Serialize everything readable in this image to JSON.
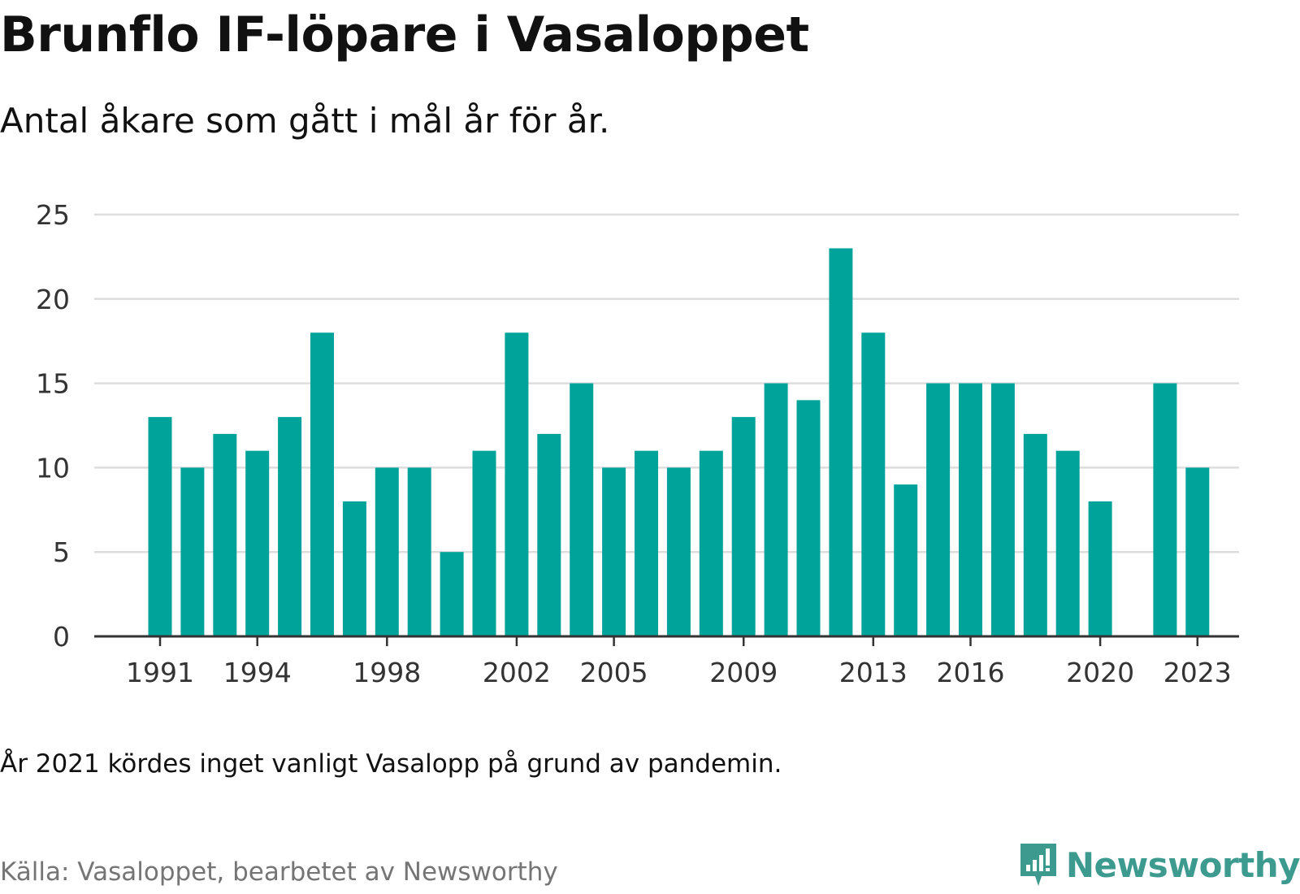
{
  "header": {
    "title": "Brunflo IF-löpare i Vasaloppet",
    "subtitle": "Antal åkare som gått i mål år för år."
  },
  "footer": {
    "note": "År 2021 kördes inget vanligt Vasalopp på grund av pandemin.",
    "source": "Källa: Vasaloppet, bearbetet av Newsworthy",
    "brand": "Newsworthy",
    "brand_icon": "newsworthy-chart-bubble-icon"
  },
  "colors": {
    "bar": "#00a39a",
    "grid": "#dddddd",
    "axis": "#333333",
    "brand": "#3d9a8f",
    "source": "#757575"
  },
  "chart_data": {
    "type": "bar",
    "title": "Brunflo IF-löpare i Vasaloppet",
    "subtitle": "Antal åkare som gått i mål år för år.",
    "categories": [
      1991,
      1992,
      1993,
      1994,
      1995,
      1996,
      1997,
      1998,
      1999,
      2000,
      2001,
      2002,
      2003,
      2004,
      2005,
      2006,
      2007,
      2008,
      2009,
      2010,
      2011,
      2012,
      2013,
      2014,
      2015,
      2016,
      2017,
      2018,
      2019,
      2020,
      2021,
      2022,
      2023
    ],
    "values": [
      13,
      10,
      12,
      11,
      13,
      18,
      8,
      10,
      10,
      5,
      11,
      18,
      12,
      15,
      10,
      11,
      10,
      11,
      13,
      15,
      14,
      23,
      18,
      9,
      15,
      15,
      15,
      12,
      11,
      8,
      null,
      15,
      10
    ],
    "x_tick_labels": [
      "1991",
      "1994",
      "1998",
      "2002",
      "2005",
      "2009",
      "2013",
      "2016",
      "2020",
      "2023"
    ],
    "y_ticks": [
      0,
      5,
      10,
      15,
      20,
      25
    ],
    "xlabel": "",
    "ylabel": "",
    "ylim": [
      0,
      25
    ],
    "grid": true,
    "legend": "none"
  }
}
